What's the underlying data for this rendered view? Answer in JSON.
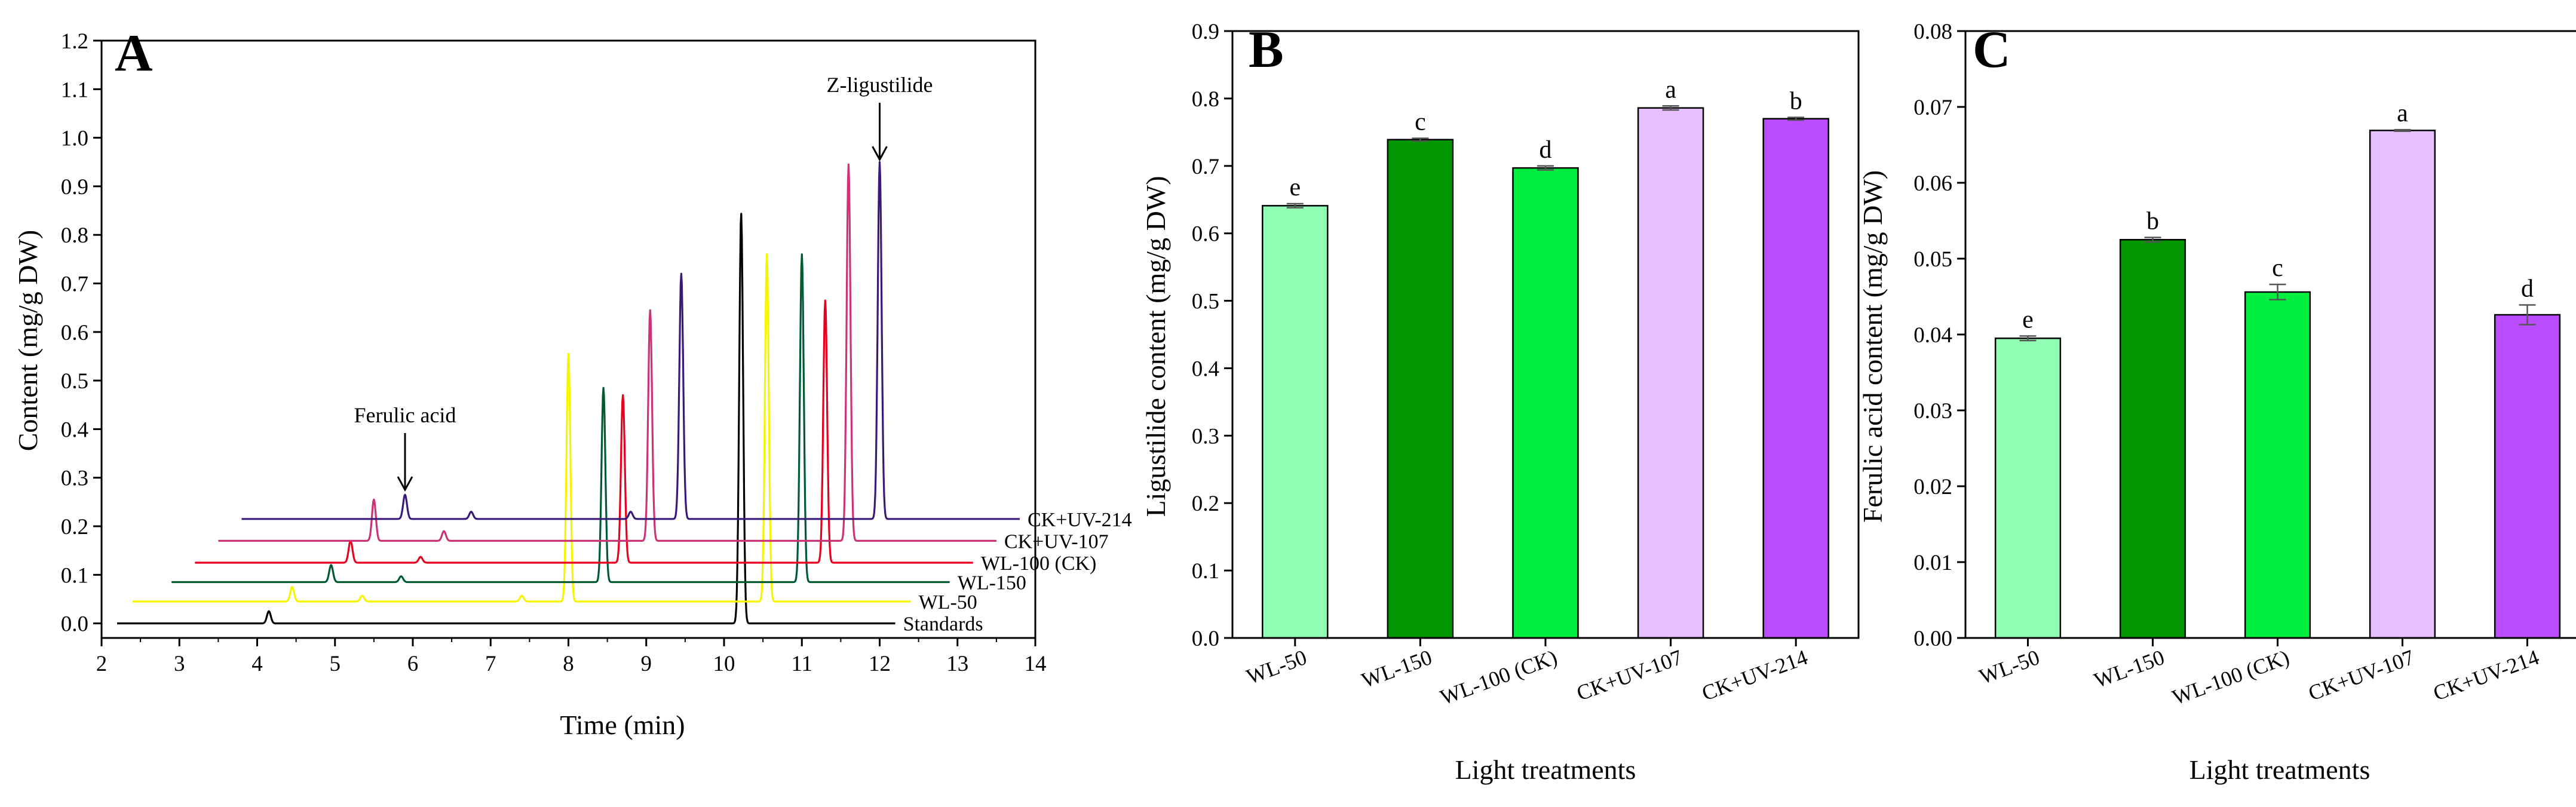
{
  "chart_data": [
    {
      "panel": "A",
      "type": "line",
      "xlabel": "Time (min)",
      "ylabel": "Content (mg/g DW)",
      "xlim": [
        2,
        14
      ],
      "ylim": [
        -0.03,
        1.2
      ],
      "xticks": [
        "2",
        "3",
        "4",
        "5",
        "6",
        "7",
        "8",
        "9",
        "10",
        "11",
        "12",
        "13",
        "14"
      ],
      "yticks": [
        "0.0",
        "0.1",
        "0.2",
        "0.3",
        "0.4",
        "0.5",
        "0.6",
        "0.7",
        "0.8",
        "0.9",
        "1.0",
        "1.1",
        "1.2"
      ],
      "annotations": [
        {
          "text": "Ferulic acid",
          "x": 5.9,
          "y": 0.27
        },
        {
          "text": "Z-ligustilide",
          "x": 12.0,
          "y": 0.95
        }
      ],
      "series": [
        {
          "name": "Standards",
          "color": "#000000",
          "baseline": 0.0,
          "x_start": 2.2,
          "x_end": 12.2,
          "label_x": 12.3,
          "peaks": [
            {
              "x": 4.15,
              "h": 0.025,
              "w": 0.035
            },
            {
              "x": 10.22,
              "h": 0.845,
              "w": 0.035
            }
          ]
        },
        {
          "name": "WL-50",
          "color": "#f5f500",
          "baseline": 0.045,
          "x_start": 2.4,
          "x_end": 12.4,
          "label_x": 12.5,
          "peaks": [
            {
              "x": 4.45,
              "h": 0.03,
              "w": 0.035
            },
            {
              "x": 5.35,
              "h": 0.012,
              "w": 0.035
            },
            {
              "x": 7.4,
              "h": 0.012,
              "w": 0.035
            },
            {
              "x": 8.0,
              "h": 0.51,
              "w": 0.035
            },
            {
              "x": 10.55,
              "h": 0.715,
              "w": 0.035
            }
          ]
        },
        {
          "name": "WL-150",
          "color": "#005a32",
          "baseline": 0.085,
          "x_start": 2.9,
          "x_end": 12.9,
          "label_x": 13.0,
          "peaks": [
            {
              "x": 4.95,
              "h": 0.035,
              "w": 0.035
            },
            {
              "x": 5.85,
              "h": 0.012,
              "w": 0.035
            },
            {
              "x": 8.45,
              "h": 0.4,
              "w": 0.035
            },
            {
              "x": 11.0,
              "h": 0.675,
              "w": 0.035
            }
          ]
        },
        {
          "name": "WL-100 (CK)",
          "color": "#e8001e",
          "baseline": 0.125,
          "x_start": 3.2,
          "x_end": 13.2,
          "label_x": 13.3,
          "peaks": [
            {
              "x": 5.2,
              "h": 0.045,
              "w": 0.035
            },
            {
              "x": 6.1,
              "h": 0.012,
              "w": 0.035
            },
            {
              "x": 8.7,
              "h": 0.345,
              "w": 0.035
            },
            {
              "x": 11.3,
              "h": 0.54,
              "w": 0.035
            }
          ]
        },
        {
          "name": "CK+UV-107",
          "color": "#cc3377",
          "baseline": 0.17,
          "x_start": 3.5,
          "x_end": 13.5,
          "label_x": 13.6,
          "peaks": [
            {
              "x": 5.5,
              "h": 0.085,
              "w": 0.035
            },
            {
              "x": 6.4,
              "h": 0.02,
              "w": 0.035
            },
            {
              "x": 9.05,
              "h": 0.475,
              "w": 0.035
            },
            {
              "x": 11.6,
              "h": 0.775,
              "w": 0.035
            }
          ]
        },
        {
          "name": "CK+UV-214",
          "color": "#3a1a78",
          "baseline": 0.215,
          "x_start": 3.8,
          "x_end": 13.8,
          "label_x": 13.9,
          "peaks": [
            {
              "x": 5.9,
              "h": 0.05,
              "w": 0.035
            },
            {
              "x": 6.75,
              "h": 0.015,
              "w": 0.035
            },
            {
              "x": 8.8,
              "h": 0.015,
              "w": 0.035
            },
            {
              "x": 9.45,
              "h": 0.505,
              "w": 0.035
            },
            {
              "x": 12.0,
              "h": 0.735,
              "w": 0.035
            }
          ]
        }
      ]
    },
    {
      "panel": "B",
      "type": "bar",
      "xlabel": "Light treatments",
      "ylabel": "Ligustilide content (mg/g DW)",
      "ylim": [
        0,
        0.9
      ],
      "yticks": [
        "0.0",
        "0.1",
        "0.2",
        "0.3",
        "0.4",
        "0.5",
        "0.6",
        "0.7",
        "0.8",
        "0.9"
      ],
      "categories": [
        "WL-50",
        "WL-150",
        "WL-100 (CK)",
        "CK+UV-107",
        "CK+UV-214"
      ],
      "values": [
        0.641,
        0.739,
        0.697,
        0.786,
        0.77
      ],
      "errors": [
        0.003,
        0.002,
        0.003,
        0.003,
        0.002
      ],
      "letters": [
        "e",
        "c",
        "d",
        "a",
        "b"
      ],
      "colors": [
        "#90ffb4",
        "#029602",
        "#00ee40",
        "#e6bfff",
        "#bb4cff"
      ]
    },
    {
      "panel": "C",
      "type": "bar",
      "xlabel": "Light treatments",
      "ylabel": "Ferulic acid content (mg/g DW)",
      "ylim": [
        0,
        0.08
      ],
      "yticks": [
        "0.00",
        "0.01",
        "0.02",
        "0.03",
        "0.04",
        "0.05",
        "0.06",
        "0.07",
        "0.08"
      ],
      "categories": [
        "WL-50",
        "WL-150",
        "WL-100 (CK)",
        "CK+UV-107",
        "CK+UV-214"
      ],
      "values": [
        0.0395,
        0.0525,
        0.0456,
        0.0669,
        0.0426
      ],
      "errors": [
        0.0003,
        0.0003,
        0.001,
        0.0001,
        0.0013
      ],
      "letters": [
        "e",
        "b",
        "c",
        "a",
        "d"
      ],
      "colors": [
        "#90ffb4",
        "#029602",
        "#00ee40",
        "#e6bfff",
        "#bb4cff"
      ]
    }
  ]
}
